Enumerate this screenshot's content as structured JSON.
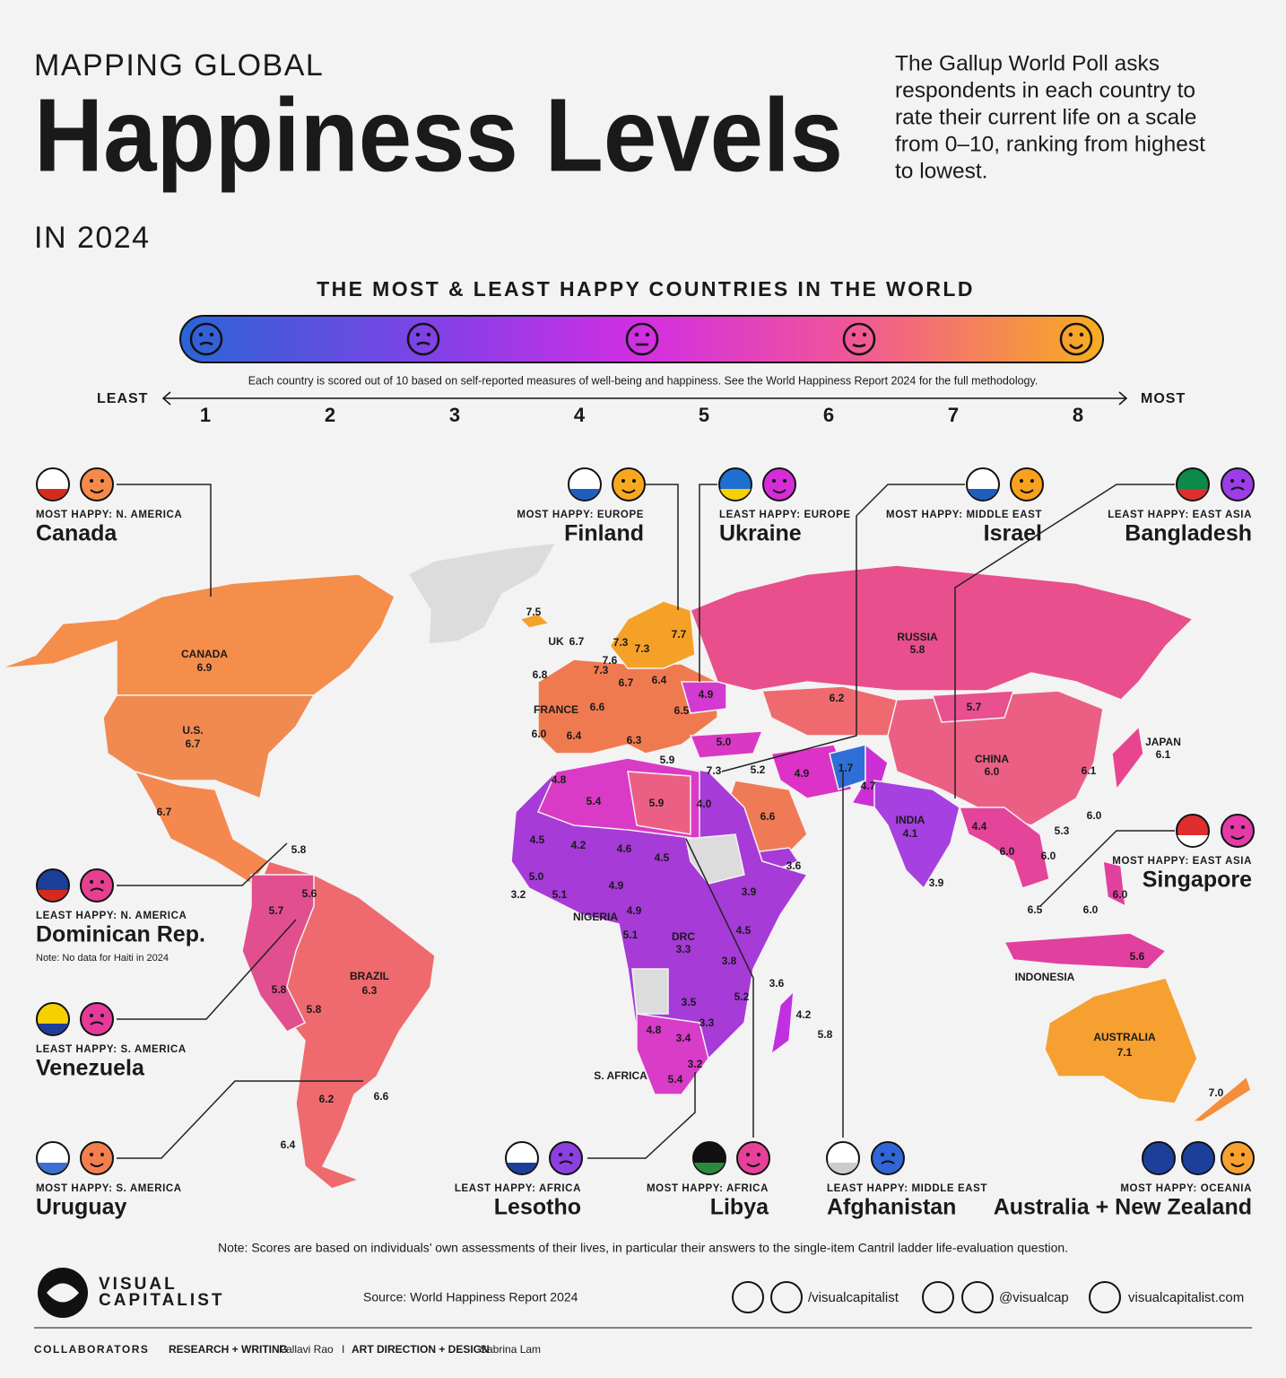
{
  "header": {
    "kicker": "MAPPING GLOBAL",
    "title": "Happiness Levels",
    "subtitle": "IN 2024",
    "description_lines": [
      "The Gallup World Poll asks",
      "respondents in each country to",
      "rate their current life on a scale",
      "from 0–10, ranking from highest",
      "to lowest."
    ]
  },
  "scale": {
    "title": "THE MOST & LEAST HAPPY COUNTRIES IN THE WORLD",
    "note": "Each country is scored out of 10 based on self-reported measures of well-being and happiness. See the World Happiness Report 2024 for the full methodology.",
    "least": "LEAST",
    "most": "MOST",
    "ticks": [
      1,
      2,
      3,
      4,
      5,
      6,
      7,
      8
    ]
  },
  "callouts": [
    {
      "kicker": "MOST HAPPY: N. AMERICA",
      "country": "Canada"
    },
    {
      "kicker": "MOST HAPPY: EUROPE",
      "country": "Finland"
    },
    {
      "kicker": "LEAST HAPPY: EUROPE",
      "country": "Ukraine"
    },
    {
      "kicker": "MOST HAPPY: MIDDLE EAST",
      "country": "Israel"
    },
    {
      "kicker": "LEAST HAPPY: EAST ASIA",
      "country": "Bangladesh"
    },
    {
      "kicker": "MOST HAPPY: EAST ASIA",
      "country": "Singapore"
    },
    {
      "kicker": "LEAST HAPPY: N. AMERICA",
      "country": "Dominican Rep.",
      "note": "Note: No data for Haiti in 2024"
    },
    {
      "kicker": "LEAST HAPPY: S. AMERICA",
      "country": "Venezuela"
    },
    {
      "kicker": "MOST HAPPY: S. AMERICA",
      "country": "Uruguay"
    },
    {
      "kicker": "LEAST HAPPY: AFRICA",
      "country": "Lesotho"
    },
    {
      "kicker": "MOST HAPPY: AFRICA",
      "country": "Libya"
    },
    {
      "kicker": "LEAST HAPPY: MIDDLE EAST",
      "country": "Afghanistan"
    },
    {
      "kicker": "MOST HAPPY: OCEANIA",
      "country": "Australia + New Zealand"
    }
  ],
  "map_labels": [
    {
      "value": "7.5"
    },
    {
      "name": "UK",
      "value": "6.7"
    },
    {
      "value": "7.3"
    },
    {
      "value": "7.3"
    },
    {
      "value": "7.7"
    },
    {
      "value": "7.6"
    },
    {
      "value": "7.3"
    },
    {
      "value": "6.8"
    },
    {
      "value": "6.7"
    },
    {
      "value": "6.4"
    },
    {
      "value": "4.9"
    },
    {
      "name": "FRANCE",
      "value": "6.6"
    },
    {
      "value": "6.5"
    },
    {
      "value": "6.0"
    },
    {
      "value": "6.4"
    },
    {
      "value": "6.3"
    },
    {
      "value": "5.0"
    },
    {
      "value": "6.2"
    },
    {
      "name": "RUSSIA",
      "value": "5.8"
    },
    {
      "value": "5.7"
    },
    {
      "name": "CHINA",
      "value": "6.0"
    },
    {
      "name": "JAPAN",
      "value": "6.1"
    },
    {
      "value": "6.1"
    },
    {
      "value": "6.0"
    },
    {
      "value": "5.3"
    },
    {
      "value": "5.9"
    },
    {
      "value": "7.3"
    },
    {
      "value": "5.2"
    },
    {
      "value": "4.9"
    },
    {
      "value": "1.7"
    },
    {
      "value": "4.7"
    },
    {
      "value": "4.8"
    },
    {
      "value": "5.4"
    },
    {
      "value": "5.9"
    },
    {
      "value": "4.0"
    },
    {
      "value": "6.6"
    },
    {
      "value": "4.5"
    },
    {
      "value": "4.2"
    },
    {
      "value": "4.6"
    },
    {
      "value": "4.5"
    },
    {
      "value": "3.6"
    },
    {
      "name": "INDIA",
      "value": "4.1"
    },
    {
      "value": "4.4"
    },
    {
      "value": "6.0"
    },
    {
      "value": "6.0"
    },
    {
      "value": "3.9"
    },
    {
      "value": "5.0"
    },
    {
      "value": "3.2"
    },
    {
      "value": "5.1"
    },
    {
      "value": "4.9"
    },
    {
      "name": "NIGERIA"
    },
    {
      "value": "3.9"
    },
    {
      "value": "4.9"
    },
    {
      "value": "5.1"
    },
    {
      "name": "DRC",
      "value": "3.3"
    },
    {
      "value": "4.5"
    },
    {
      "value": "3.8"
    },
    {
      "value": "3.6"
    },
    {
      "value": "5.2"
    },
    {
      "value": "3.5"
    },
    {
      "value": "4.2"
    },
    {
      "value": "3.3"
    },
    {
      "value": "4.8"
    },
    {
      "value": "3.4"
    },
    {
      "value": "5.8"
    },
    {
      "value": "3.2"
    },
    {
      "name": "S. AFRICA"
    },
    {
      "value": "5.4"
    },
    {
      "value": "6.5"
    },
    {
      "value": "6.0"
    },
    {
      "value": "6.0"
    },
    {
      "name": "INDONESIA"
    },
    {
      "value": "5.6"
    },
    {
      "name": "AUSTRALIA",
      "value": "7.1"
    },
    {
      "value": "7.0"
    },
    {
      "name": "CANADA",
      "value": "6.9"
    },
    {
      "name": "U.S.",
      "value": "6.7"
    },
    {
      "value": "6.7"
    },
    {
      "value": "5.8"
    },
    {
      "value": "5.6"
    },
    {
      "value": "5.7"
    },
    {
      "name": "BRAZIL",
      "value": "6.3"
    },
    {
      "value": "5.8"
    },
    {
      "value": "5.8"
    },
    {
      "value": "6.6"
    },
    {
      "value": "6.2"
    },
    {
      "value": "6.4"
    }
  ],
  "footer": {
    "note": "Note: Scores are based on individuals’ own assessments of their lives, in particular their answers to the single-item Cantril ladder life-evaluation question.",
    "logo_lines": [
      "VISUAL",
      "CAPITALIST"
    ],
    "source": "Source: World Happiness Report 2024",
    "social_1": "/visualcapitalist",
    "social_2": "@visualcap",
    "website": "visualcapitalist.com",
    "collaborators": "COLLABORATORS",
    "role_1": "RESEARCH + WRITING",
    "person_1": "Pallavi Rao",
    "separator": "I",
    "role_2": "ART DIRECTION + DESIGN",
    "person_2": "Sabrina Lam"
  }
}
